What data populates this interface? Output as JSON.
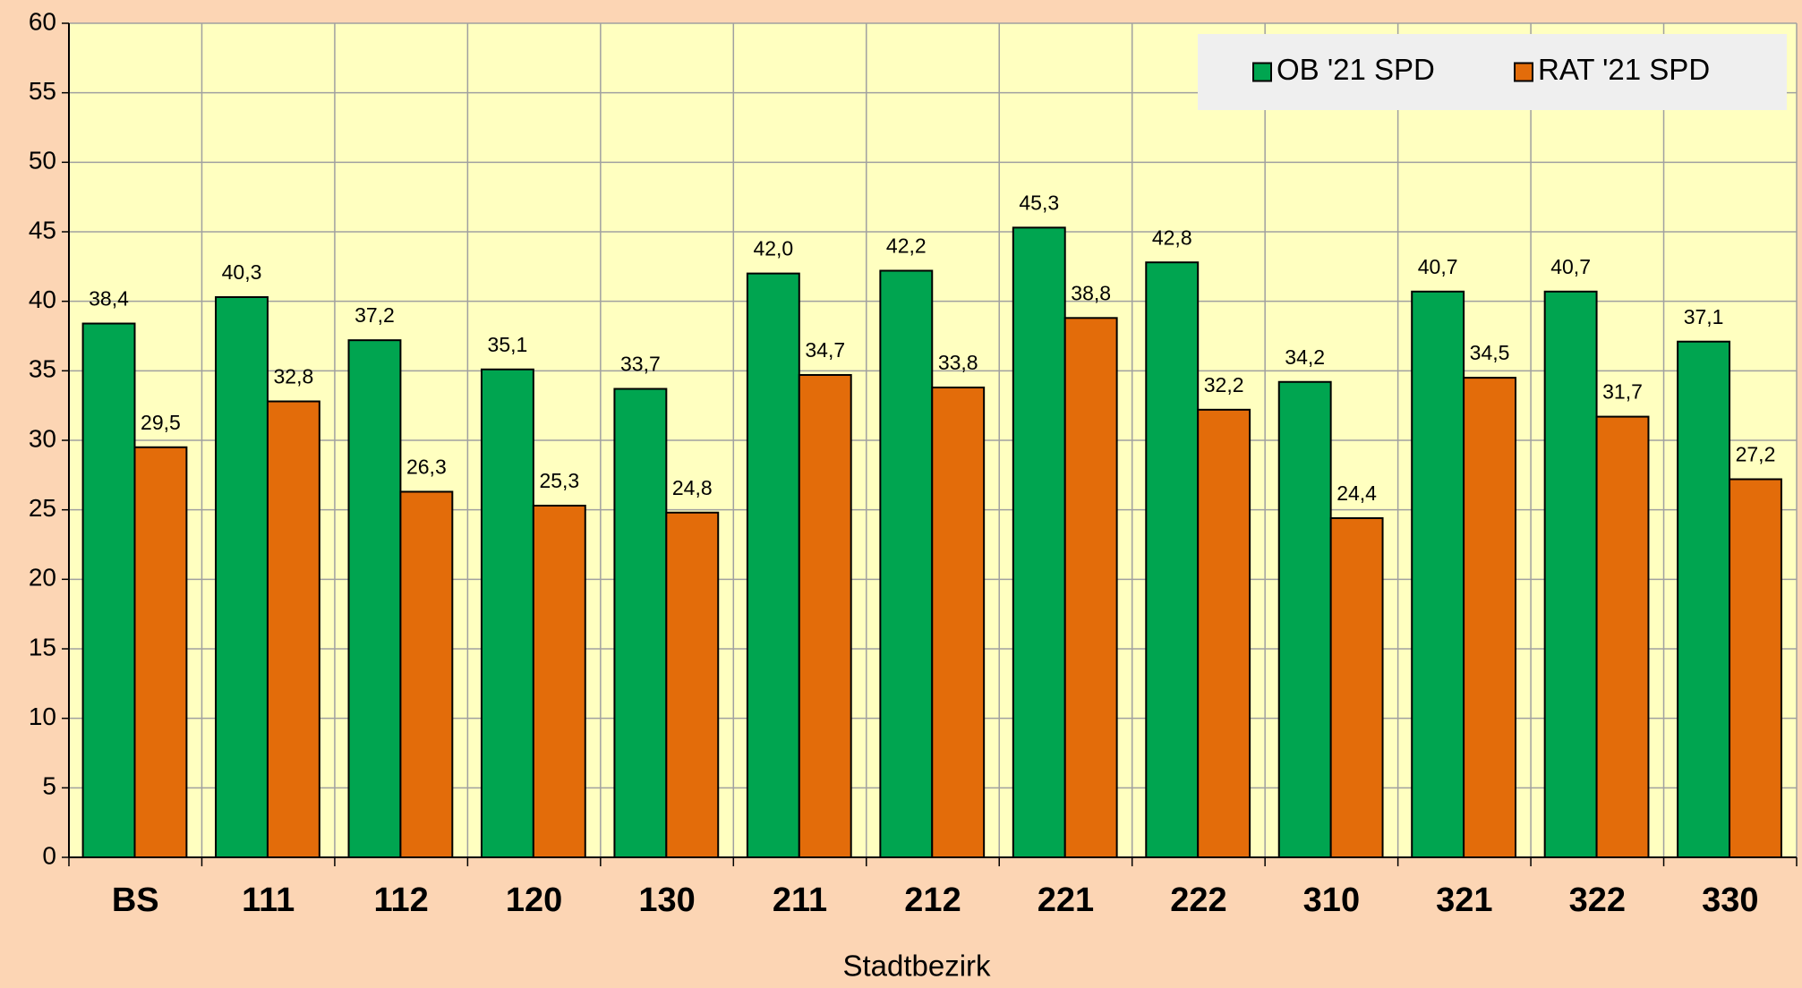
{
  "chart_data": {
    "type": "bar",
    "x_label": "Stadtbezirk",
    "categories": [
      "BS",
      "111",
      "112",
      "120",
      "130",
      "211",
      "212",
      "221",
      "222",
      "310",
      "321",
      "322",
      "330"
    ],
    "series": [
      {
        "name": "OB '21 SPD",
        "color": "#00a550",
        "values": [
          38.4,
          40.3,
          37.2,
          35.1,
          33.7,
          42.0,
          42.2,
          45.3,
          42.8,
          34.2,
          40.7,
          40.7,
          37.1
        ],
        "value_labels": [
          "38,4",
          "40,3",
          "37,2",
          "35,1",
          "33,7",
          "42,0",
          "42,2",
          "45,3",
          "42,8",
          "34,2",
          "40,7",
          "40,7",
          "37,1"
        ]
      },
      {
        "name": "RAT '21 SPD",
        "color": "#e36c0a",
        "values": [
          29.5,
          32.8,
          26.3,
          25.3,
          24.8,
          34.7,
          33.8,
          38.8,
          32.2,
          24.4,
          34.5,
          31.7,
          27.2
        ],
        "value_labels": [
          "29,5",
          "32,8",
          "26,3",
          "25,3",
          "24,8",
          "34,7",
          "33,8",
          "38,8",
          "32,2",
          "24,4",
          "34,5",
          "31,7",
          "27,2"
        ]
      }
    ],
    "ylim": [
      0,
      60
    ],
    "yticks": [
      0,
      5,
      10,
      15,
      20,
      25,
      30,
      35,
      40,
      45,
      50,
      55,
      60
    ],
    "grid": true,
    "legend": "top-right"
  }
}
